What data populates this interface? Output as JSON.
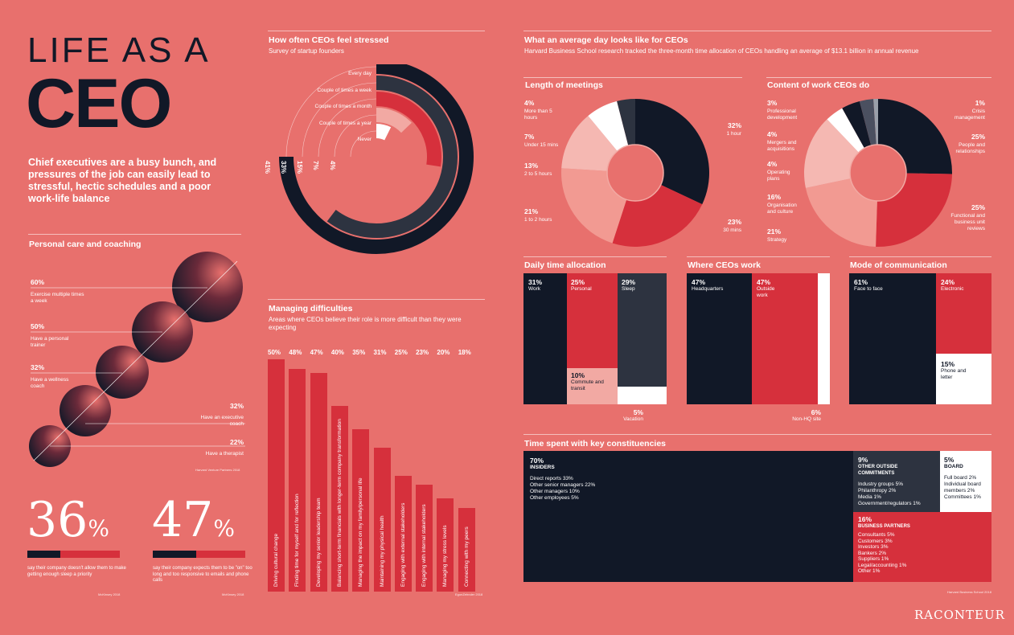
{
  "header": {
    "title_line1": "LIFE AS A",
    "title_line2": "CEO",
    "intro": "Chief executives are a busy bunch, and pressures of the job can easily lead to stressful, hectic schedules and a poor work-life balance"
  },
  "personal_care": {
    "title": "Personal care and coaching",
    "items": [
      {
        "pct": "60%",
        "label": "Exercise multiple times a week"
      },
      {
        "pct": "50%",
        "label": "Have a personal trainer"
      },
      {
        "pct": "32%",
        "label": "Have a wellness coach"
      },
      {
        "pct": "32%",
        "label": "Have an executive coach"
      },
      {
        "pct": "22%",
        "label": "Have a therapist"
      }
    ],
    "source": "Harvard Venture Partners 2018"
  },
  "stats": [
    {
      "value": "36",
      "unit": "%",
      "desc": "say their company doesn't allow them to make getting enough sleep a priority",
      "source": "McKinsey 2018",
      "fraction": 0.36
    },
    {
      "value": "47",
      "unit": "%",
      "desc": "say their company expects them to be \"on\" too long and too responsive to emails and phone calls",
      "source": "McKinsey 2018",
      "fraction": 0.47
    }
  ],
  "stress": {
    "title": "How often CEOs feel stressed",
    "subtitle": "Survey of startup founders",
    "chart_data": {
      "type": "radial-bar",
      "categories": [
        "Every day",
        "Couple of times a week",
        "Couple of times a month",
        "Couple of times a year",
        "Never"
      ],
      "values": [
        41,
        33,
        15,
        7,
        4
      ],
      "labels": [
        "41%",
        "33%",
        "15%",
        "7%",
        "4%"
      ]
    }
  },
  "difficulties": {
    "title": "Managing difficulties",
    "subtitle": "Areas where CEOs believe their role is more difficult than they were expecting",
    "source": "EgonZehnder 2018",
    "chart_data": {
      "type": "bar",
      "categories": [
        "Driving cultural change",
        "Finding time for myself and for reflection",
        "Developing my senior leadership team",
        "Balancing short-term financials with longer-term company transformation",
        "Managing the impact on my family/personal life",
        "Maintaining my physical health",
        "Engaging with external stakeholders",
        "Engaging with internal stakeholders",
        "Managing my stress levels",
        "Connecting with my peers"
      ],
      "values": [
        50,
        48,
        47,
        40,
        35,
        31,
        25,
        23,
        20,
        18
      ],
      "labels": [
        "50%",
        "48%",
        "47%",
        "40%",
        "35%",
        "31%",
        "25%",
        "23%",
        "20%",
        "18%"
      ],
      "ylim": [
        0,
        50
      ]
    }
  },
  "day": {
    "title": "What an average day looks like for CEOs",
    "subtitle": "Harvard Business School research tracked the three-month time allocation of CEOs handling an average of $13.1 billion in annual revenue",
    "source": "Harvard Business School 2018",
    "meetings": {
      "title": "Length of meetings",
      "chart_data": {
        "type": "pie",
        "categories": [
          "1 hour",
          "30 mins",
          "1 to 2 hours",
          "2 to 5 hours",
          "Under 15 mins",
          "More than 5 hours"
        ],
        "values": [
          32,
          23,
          21,
          13,
          7,
          4
        ]
      },
      "labels": [
        {
          "pct": "32%",
          "label": "1 hour"
        },
        {
          "pct": "23%",
          "label": "30 mins"
        },
        {
          "pct": "21%",
          "label": "1 to 2 hours"
        },
        {
          "pct": "13%",
          "label": "2 to 5 hours"
        },
        {
          "pct": "7%",
          "label": "Under 15 mins"
        },
        {
          "pct": "4%",
          "label": "More than 5 hours"
        }
      ]
    },
    "content": {
      "title": "Content of work CEOs do",
      "chart_data": {
        "type": "pie",
        "categories": [
          "People and relationships",
          "Functional and business unit reviews",
          "Strategy",
          "Organisation and culture",
          "Operating plans",
          "Mergers and acquisitions",
          "Professional development",
          "Crisis management"
        ],
        "values": [
          25,
          25,
          21,
          16,
          4,
          4,
          3,
          1
        ]
      },
      "labels": [
        {
          "pct": "1%",
          "label": "Crisis management"
        },
        {
          "pct": "25%",
          "label": "People and relationships"
        },
        {
          "pct": "25%",
          "label": "Functional and business unit reviews"
        },
        {
          "pct": "3%",
          "label": "Professional development"
        },
        {
          "pct": "4%",
          "label": "Mergers and acquisitions"
        },
        {
          "pct": "4%",
          "label": "Operating plans"
        },
        {
          "pct": "16%",
          "label": "Organisation and culture"
        },
        {
          "pct": "21%",
          "label": "Strategy"
        }
      ]
    },
    "daily": {
      "title": "Daily time allocation",
      "blocks": [
        {
          "pct": "31%",
          "label": "Work"
        },
        {
          "pct": "25%",
          "label": "Personal"
        },
        {
          "pct": "29%",
          "label": "Sleep"
        },
        {
          "pct": "10%",
          "label": "Commute and transit"
        },
        {
          "pct": "5%",
          "label": "Vacation"
        }
      ]
    },
    "where": {
      "title": "Where CEOs work",
      "blocks": [
        {
          "pct": "47%",
          "label": "Headquarters"
        },
        {
          "pct": "47%",
          "label": "Outside work"
        },
        {
          "pct": "6%",
          "label": "Non-HQ site"
        }
      ]
    },
    "mode": {
      "title": "Mode of communication",
      "blocks": [
        {
          "pct": "61%",
          "label": "Face to face"
        },
        {
          "pct": "24%",
          "label": "Electronic"
        },
        {
          "pct": "15%",
          "label": "Phone and letter"
        }
      ]
    },
    "constituencies": {
      "title": "Time spent with key constituencies",
      "insiders": {
        "pct": "70%",
        "name": "INSIDERS",
        "items": [
          "Direct reports 33%",
          "Other senior managers 22%",
          "Other managers 10%",
          "Other employees 5%"
        ]
      },
      "outside": {
        "pct": "9%",
        "name": "OTHER OUTSIDE COMMITMENTS",
        "items": [
          "Industry groups 5%",
          "Philanthropy 2%",
          "Media 1%",
          "Government/regulators 1%"
        ]
      },
      "board": {
        "pct": "5%",
        "name": "BOARD",
        "items": [
          "Full board 2%",
          "Individual board members 2%",
          "Committees 1%"
        ]
      },
      "partners": {
        "pct": "16%",
        "name": "BUSINESS PARTNERS",
        "items": [
          "Consultants 5%",
          "Customers 3%",
          "Investors 3%",
          "Bankers 2%",
          "Suppliers 1%",
          "Legal/accounting 1%",
          "Other 1%"
        ]
      }
    }
  },
  "brand": "RACONTEUR",
  "colors": {
    "background": "#e8706d",
    "navy": "#111827",
    "red": "#d6303c",
    "light": "#f2a9a3",
    "white": "#ffffff"
  }
}
